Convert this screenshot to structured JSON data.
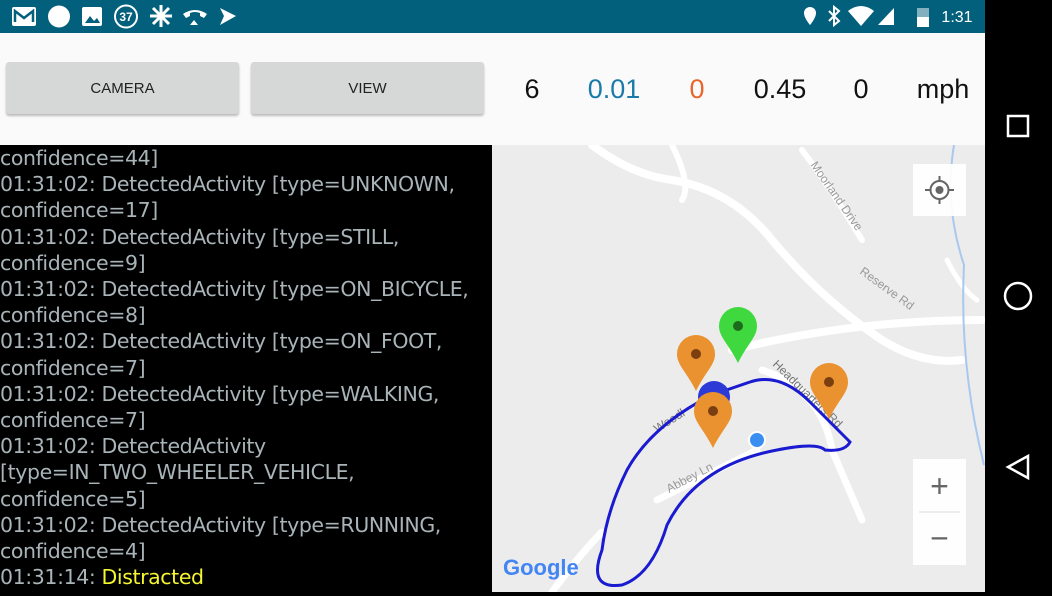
{
  "status_bar": {
    "notification_count": "37",
    "time": "1:31"
  },
  "toolbar": {
    "buttons": [
      "CAMERA",
      "VIEW"
    ],
    "stats": [
      "6",
      "0.01",
      "0",
      "0.45",
      "0"
    ],
    "unit": "mph"
  },
  "log": {
    "lines": [
      "confidence=44]",
      "01:31:02: DetectedActivity [type=UNKNOWN,",
      "confidence=17]",
      "01:31:02: DetectedActivity [type=STILL,",
      "confidence=9]",
      "01:31:02: DetectedActivity [type=ON_BICYCLE,",
      "confidence=8]",
      "01:31:02: DetectedActivity [type=ON_FOOT,",
      "confidence=7]",
      "01:31:02: DetectedActivity [type=WALKING,",
      "confidence=7]",
      "01:31:02: DetectedActivity",
      "[type=IN_TWO_WHEELER_VEHICLE,",
      "confidence=5]",
      "01:31:02: DetectedActivity [type=RUNNING,",
      "confidence=4]"
    ],
    "last": {
      "time": "01:31:14:",
      "status": "Distracted"
    }
  },
  "map": {
    "roads": [
      "Moorland Drive",
      "Reserve Rd",
      "Headquarters Rd",
      "Woodl",
      "Abbey Ln"
    ],
    "logo": "Google",
    "zoom_in": "+",
    "zoom_out": "−"
  }
}
